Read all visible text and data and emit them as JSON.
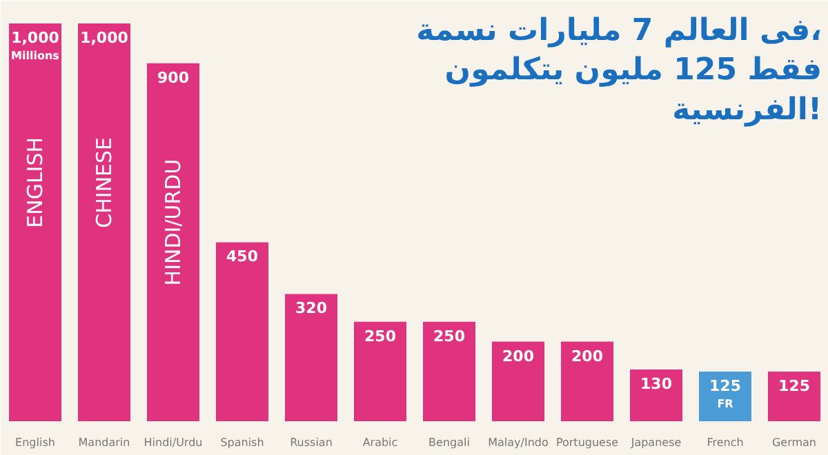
{
  "chart_data": {
    "type": "bar",
    "title": "فى العالم 7 مليارات نسمة،\nفقط 125 مليون يتكلمون\nالفرنسية!",
    "categories": [
      "English",
      "Mandarin",
      "Hindi/Urdu",
      "Spanish",
      "Russian",
      "Arabic",
      "Bengali",
      "Malay/Indo",
      "Portuguese",
      "Japanese",
      "French",
      "German"
    ],
    "values": [
      1000,
      1000,
      900,
      450,
      320,
      250,
      250,
      200,
      200,
      130,
      125,
      125
    ],
    "value_labels": [
      "1,000\nMillions",
      "1,000",
      "900",
      "450",
      "320",
      "250",
      "250",
      "200",
      "200",
      "130",
      "125\nFR",
      "125"
    ],
    "colors": [
      "#e0337f",
      "#e0337f",
      "#e0337f",
      "#e0337f",
      "#e0337f",
      "#e0337f",
      "#e0337f",
      "#e0337f",
      "#e0337f",
      "#e0337f",
      "#4a9bd6",
      "#e0337f"
    ],
    "relative": false,
    "annotations": [
      "ENGLISH",
      "CHINESE",
      "HINDI/URDU"
    ],
    "ylim": [
      0,
      1040
    ],
    "grid": false
  }
}
